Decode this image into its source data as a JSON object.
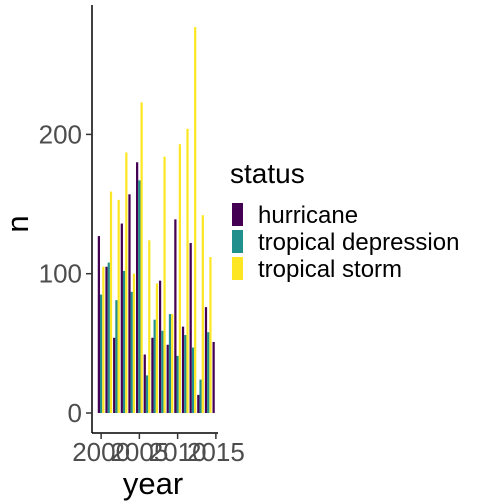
{
  "chart_data": {
    "type": "bar",
    "x": [
      2000,
      2001,
      2002,
      2003,
      2004,
      2005,
      2006,
      2007,
      2008,
      2009,
      2010,
      2011,
      2012,
      2013,
      2014,
      2015
    ],
    "series": [
      {
        "name": "hurricane",
        "color": "#440154",
        "values": [
          127,
          105,
          54,
          136,
          157,
          180,
          42,
          54,
          95,
          49,
          139,
          62,
          122,
          13,
          76,
          51
        ]
      },
      {
        "name": "tropical depression",
        "color": "#21908C",
        "values": [
          85,
          108,
          81,
          102,
          87,
          167,
          27,
          67,
          59,
          71,
          41,
          56,
          47,
          24,
          58,
          0
        ]
      },
      {
        "name": "tropical storm",
        "color": "#FDE725",
        "values": [
          105,
          159,
          153,
          187,
          100,
          223,
          124,
          93,
          184,
          71,
          193,
          204,
          277,
          142,
          112,
          0
        ]
      }
    ],
    "xlabel": "year",
    "ylabel": "n",
    "xticks": [
      "2000",
      "2005",
      "2010",
      "2015"
    ],
    "yticks": [
      "0",
      "100",
      "200"
    ],
    "ylim": [
      0,
      290
    ],
    "grid": false,
    "legend": {
      "title": "status",
      "placement": "right"
    }
  }
}
